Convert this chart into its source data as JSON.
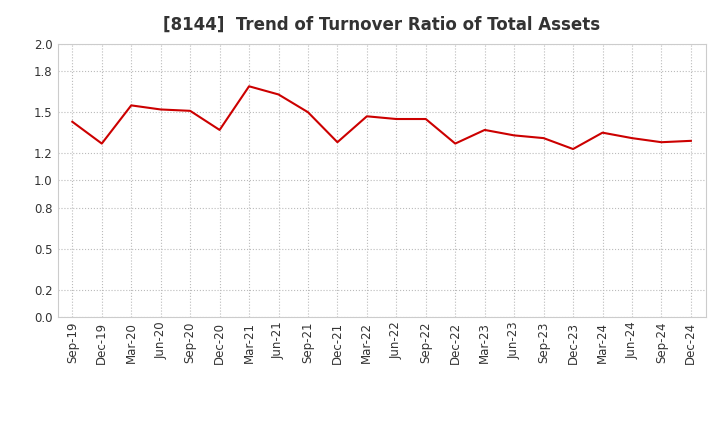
{
  "title": "[8144]  Trend of Turnover Ratio of Total Assets",
  "x_labels": [
    "Sep-19",
    "Dec-19",
    "Mar-20",
    "Jun-20",
    "Sep-20",
    "Dec-20",
    "Mar-21",
    "Jun-21",
    "Sep-21",
    "Dec-21",
    "Mar-22",
    "Jun-22",
    "Sep-22",
    "Dec-22",
    "Mar-23",
    "Jun-23",
    "Sep-23",
    "Dec-23",
    "Mar-24",
    "Jun-24",
    "Sep-24",
    "Dec-24"
  ],
  "values": [
    1.43,
    1.27,
    1.55,
    1.52,
    1.51,
    1.37,
    1.69,
    1.63,
    1.5,
    1.28,
    1.47,
    1.45,
    1.45,
    1.27,
    1.37,
    1.33,
    1.31,
    1.23,
    1.35,
    1.31,
    1.28,
    1.29
  ],
  "line_color": "#cc0000",
  "line_width": 1.5,
  "ylim": [
    0.0,
    2.0
  ],
  "yticks": [
    0.0,
    0.2,
    0.5,
    0.8,
    1.0,
    1.2,
    1.5,
    1.8,
    2.0
  ],
  "grid_color": "#bbbbbb",
  "background_color": "#ffffff",
  "title_fontsize": 12,
  "tick_fontsize": 8.5,
  "title_color": "#333333"
}
